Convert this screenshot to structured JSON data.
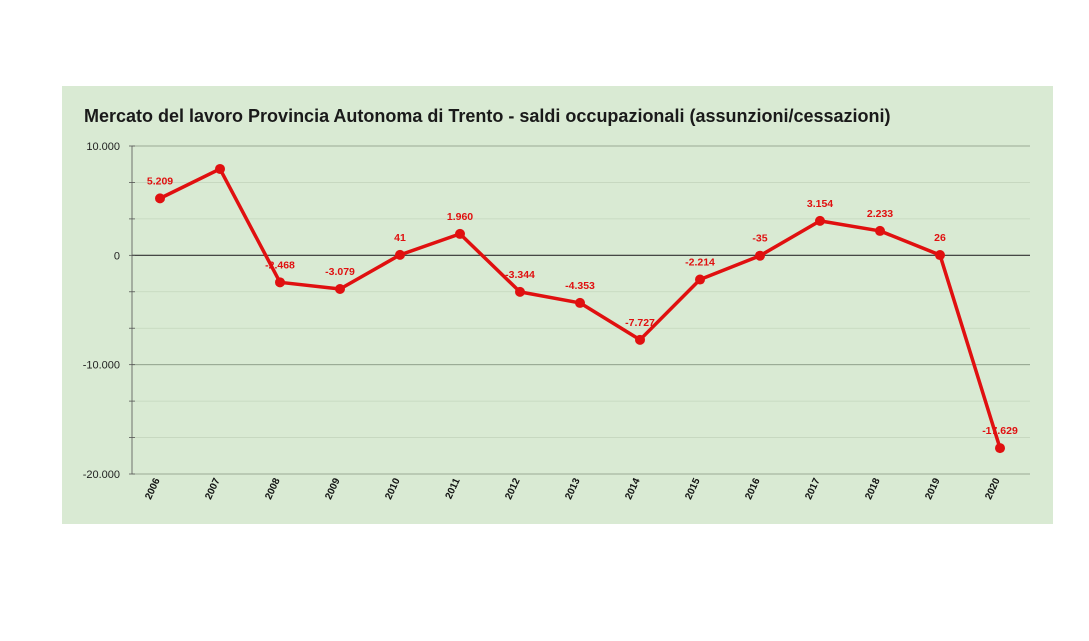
{
  "chart_data": {
    "type": "line",
    "title": "Mercato del lavoro Provincia Autonoma di Trento - saldi occupazionali (assunzioni/cessazioni)",
    "categories": [
      "2006",
      "2007",
      "2008",
      "2009",
      "2010",
      "2011",
      "2012",
      "2013",
      "2014",
      "2015",
      "2016",
      "2017",
      "2018",
      "2019",
      "2020"
    ],
    "values": [
      5209,
      7900,
      -2468,
      -3079,
      41,
      1960,
      -3344,
      -4353,
      -7727,
      -2214,
      -35,
      3154,
      2233,
      26,
      -17629
    ],
    "data_labels": [
      "5.209",
      "",
      "-2.468",
      "-3.079",
      "41",
      "1.960",
      "-3.344",
      "-4.353",
      "-7.727",
      "-2.214",
      "-35",
      "3.154",
      "2.233",
      "26",
      "-17.629"
    ],
    "ylim": [
      -20000,
      10000
    ],
    "y_ticks": [
      10000,
      0,
      -10000,
      -20000
    ],
    "y_tick_labels": [
      "10.000",
      "0",
      "-10.000",
      "-20.000"
    ],
    "grid": true,
    "line_color": "#e01010",
    "background": "#d9ead3"
  }
}
